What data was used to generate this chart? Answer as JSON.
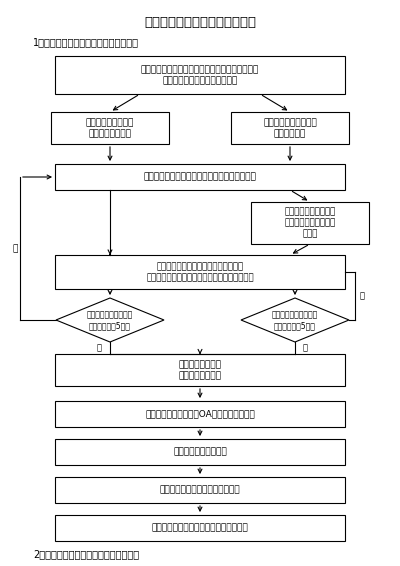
{
  "title": "同济大学科技成果转化实施流程",
  "subtitle1": "1、成果完成人与成果需求方无利益关联",
  "subtitle2": "2、成果完成人与成果需求方有利益关联",
  "bg_color": "#ffffff",
  "top_text": "学校主管部门、院系、成果完成人与成果需求方洽\n谈确定转化方式，制订转化方案",
  "lb_text": "转化方式：协议定价\n确定协议成交价格",
  "rb_text": "转化方式：技术市场挂\n牌交易或拍卖",
  "ap_text": "成果完成人提出申请，院系、主管部门审核同意",
  "ch_text": "选择具有国有产权交易\n资质机构进行挂牌交易\n或拍卖",
  "rec_text": "院系与成果完成人将科技成果价格评估\n、挂牌交易或拍卖过程与结果提交主管部门备案",
  "dl_text": "成交价格不低于评估价\n格，且不低于5万元",
  "dr_text": "成交价格不低于评估价\n格，且不低于5万元",
  "rev_text": "技术转移中心审核\n法务法律条款审核",
  "pub_text": "主管部门和院系网站、OA系统、公示栏公示",
  "sig_text": "学校和转化方签署合同",
  "del_text": "根据合同进行材料交接，执行合同",
  "dis_text": "扣除相关费用后，根据约定进行收益分配",
  "no_label": "否",
  "yes_label": "是"
}
